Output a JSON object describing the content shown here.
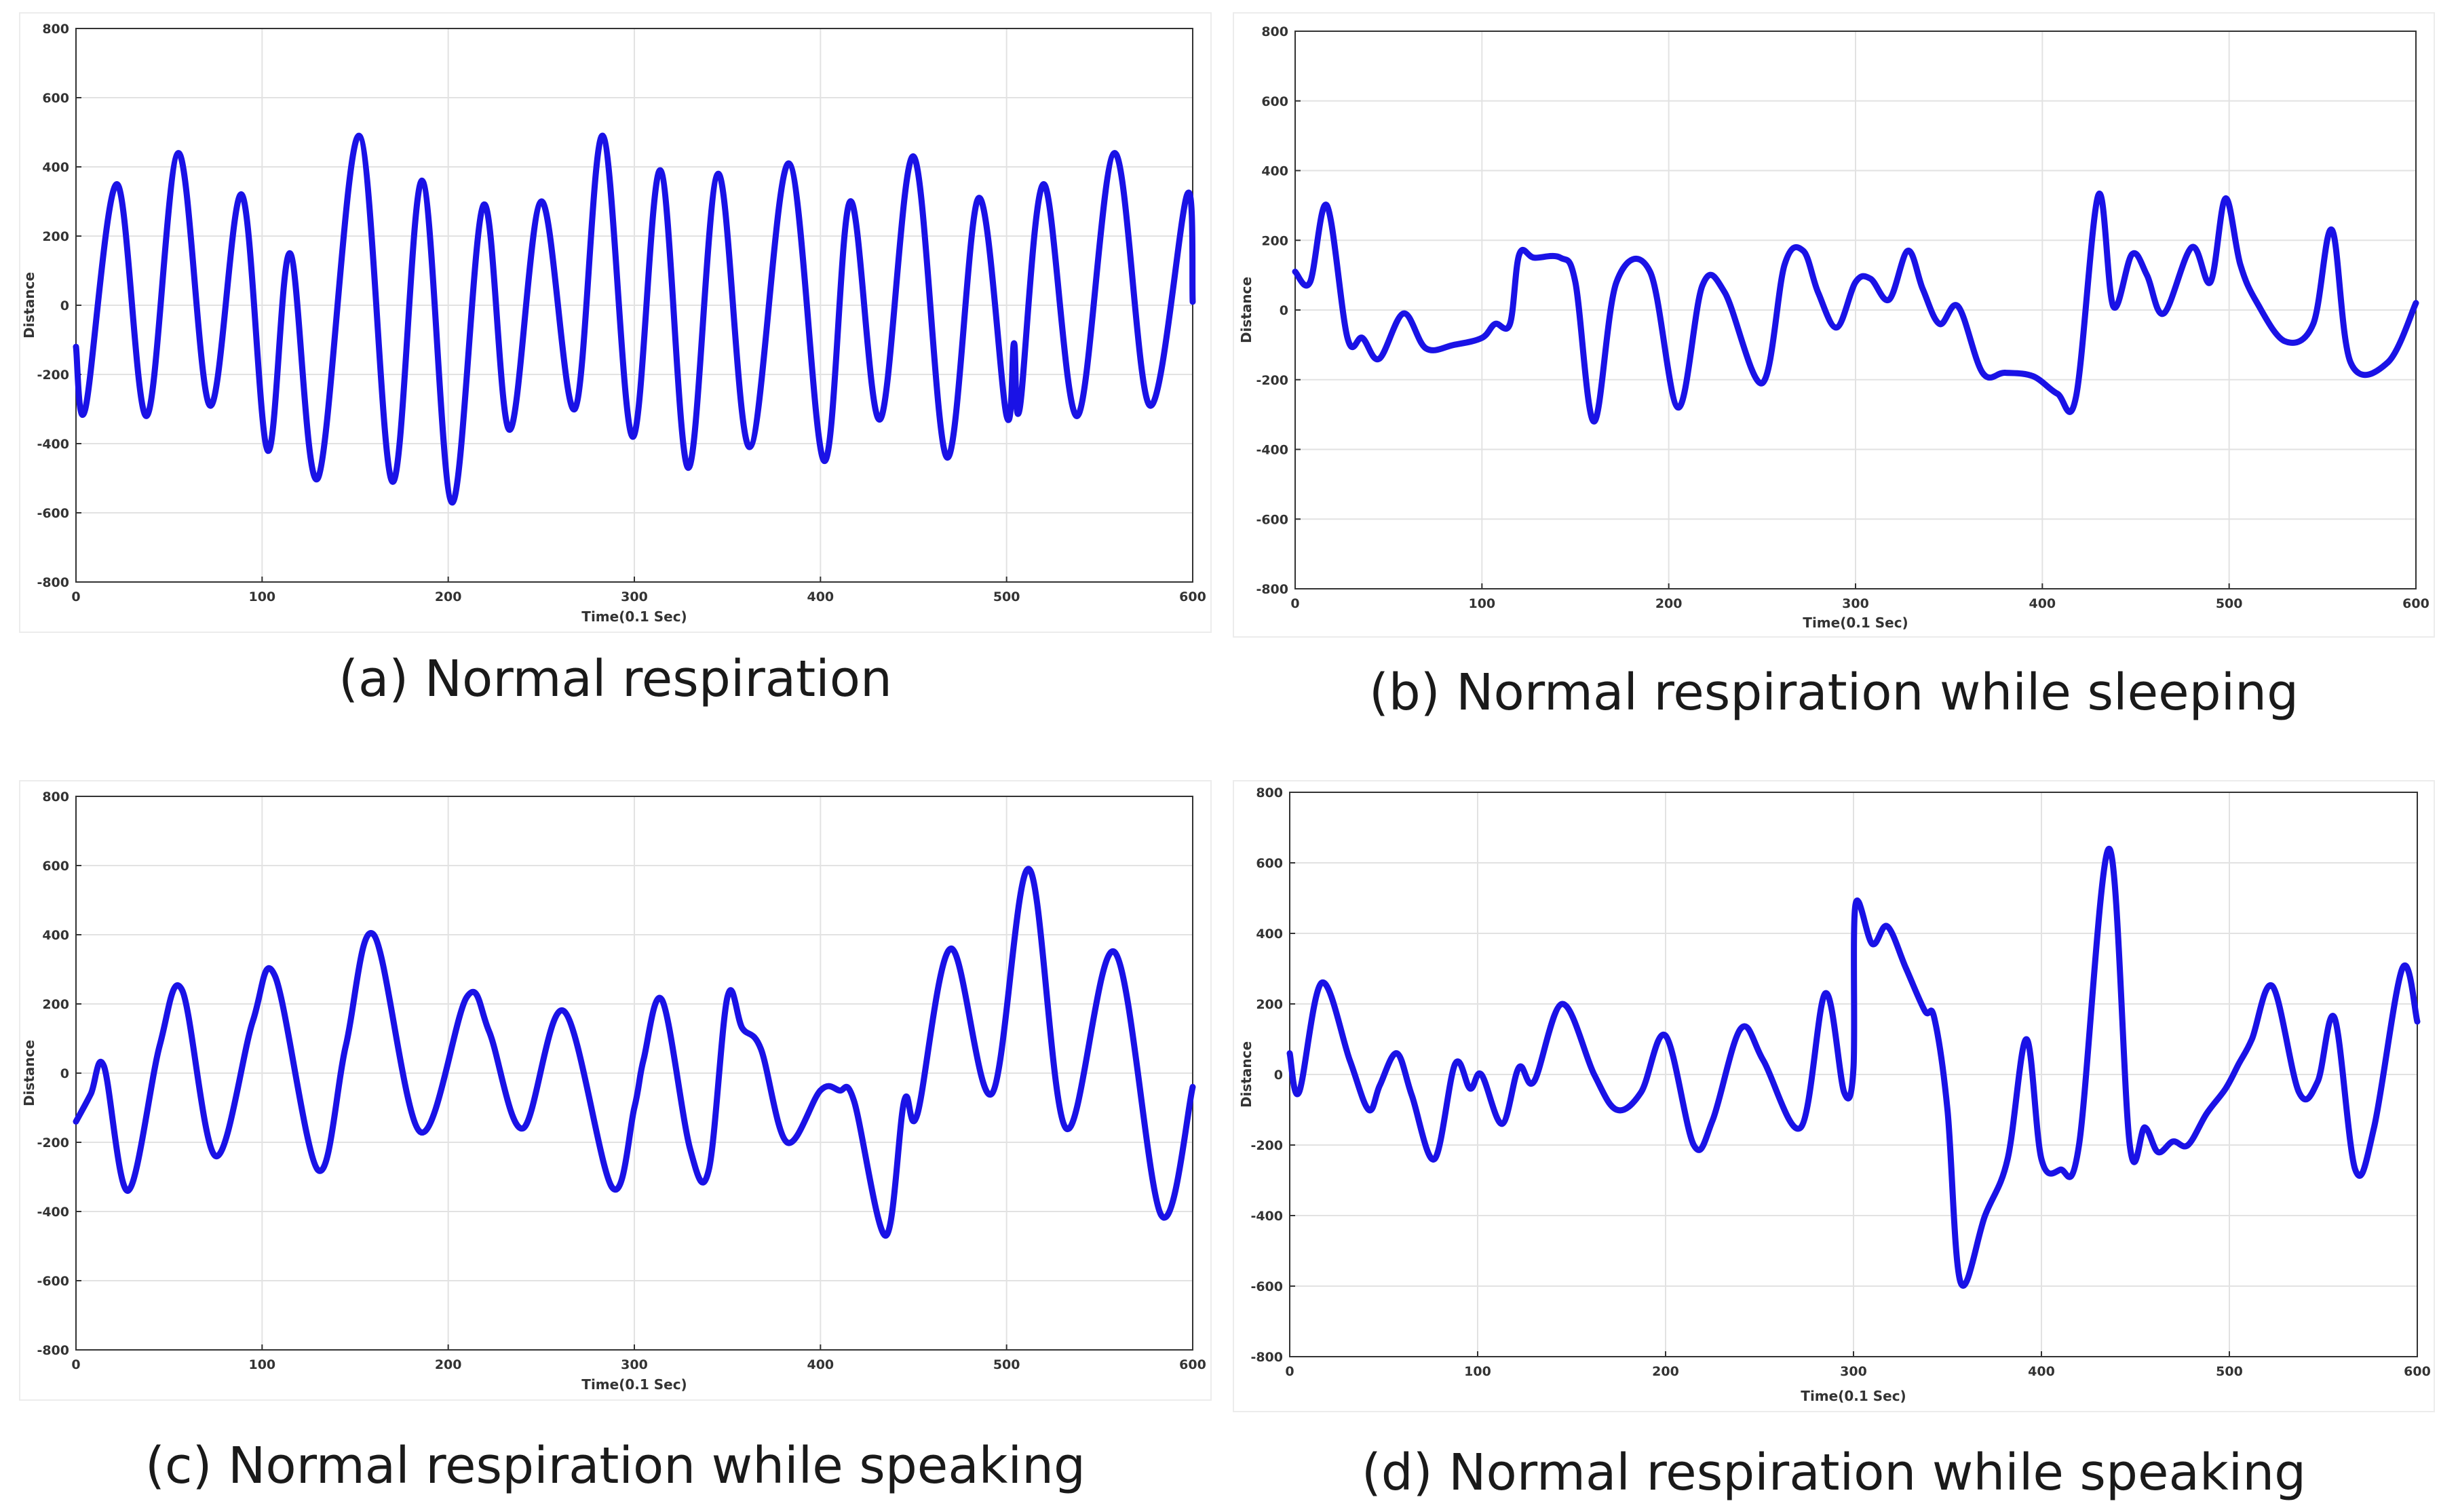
{
  "colors": {
    "line": "#1a12e6",
    "grid": "#e2e2e2",
    "axis": "#333333"
  },
  "chart_data": [
    {
      "type": "line",
      "caption": "(a) Normal respiration",
      "xlabel": "Time(0.1 Sec)",
      "ylabel": "Distance",
      "xlim": [
        0,
        600
      ],
      "ylim": [
        -800,
        800
      ],
      "xticks": [
        0,
        100,
        200,
        300,
        400,
        500,
        600
      ],
      "yticks": [
        -800,
        -600,
        -400,
        -200,
        0,
        200,
        400,
        600,
        800
      ],
      "grid": true,
      "series": [
        {
          "x": [
            0,
            5,
            22,
            38,
            55,
            72,
            89,
            103,
            115,
            130,
            152,
            170,
            186,
            202,
            219,
            233,
            250,
            268,
            283,
            299,
            314,
            329,
            345,
            362,
            383,
            402,
            416,
            432,
            450,
            468,
            485,
            500,
            504,
            507,
            520,
            538,
            558,
            577,
            597,
            600
          ],
          "y": [
            -120,
            -300,
            350,
            -320,
            440,
            -290,
            320,
            -420,
            150,
            -500,
            490,
            -510,
            360,
            -570,
            290,
            -360,
            300,
            -300,
            490,
            -380,
            390,
            -470,
            380,
            -410,
            410,
            -450,
            300,
            -330,
            430,
            -440,
            310,
            -320,
            -110,
            -300,
            350,
            -320,
            440,
            -290,
            320,
            10
          ]
        }
      ]
    },
    {
      "type": "line",
      "caption": "(b) Normal respiration while sleeping",
      "xlabel": "Time(0.1 Sec)",
      "ylabel": "Distance",
      "xlim": [
        0,
        600
      ],
      "ylim": [
        -800,
        800
      ],
      "xticks": [
        0,
        100,
        200,
        300,
        400,
        500,
        600
      ],
      "yticks": [
        -800,
        -600,
        -400,
        -200,
        0,
        200,
        400,
        600,
        800
      ],
      "grid": true,
      "series": [
        {
          "x": [
            0,
            8,
            17,
            28,
            36,
            45,
            58,
            70,
            85,
            100,
            107,
            115,
            120,
            128,
            142,
            150,
            160,
            172,
            190,
            205,
            218,
            230,
            250,
            262,
            272,
            280,
            290,
            300,
            308,
            318,
            328,
            336,
            345,
            355,
            368,
            380,
            395,
            408,
            418,
            430,
            438,
            448,
            456,
            465,
            480,
            490,
            498,
            506,
            515,
            530,
            545,
            555,
            565,
            585,
            600
          ],
          "y": [
            110,
            80,
            300,
            -80,
            -80,
            -140,
            -10,
            -110,
            -100,
            -80,
            -40,
            -40,
            160,
            150,
            150,
            80,
            -320,
            80,
            110,
            -280,
            70,
            50,
            -210,
            130,
            170,
            50,
            -50,
            80,
            90,
            30,
            170,
            60,
            -40,
            10,
            -180,
            -180,
            -190,
            -240,
            -250,
            330,
            10,
            160,
            100,
            -10,
            180,
            80,
            320,
            130,
            20,
            -90,
            -40,
            230,
            -150,
            -150,
            20
          ]
        }
      ]
    },
    {
      "type": "line",
      "caption": "(c) Normal respiration while speaking",
      "xlabel": "Time(0.1 Sec)",
      "ylabel": "Distance",
      "xlim": [
        0,
        600
      ],
      "ylim": [
        -800,
        800
      ],
      "xticks": [
        0,
        100,
        200,
        300,
        400,
        500,
        600
      ],
      "yticks": [
        -800,
        -600,
        -400,
        -200,
        0,
        200,
        400,
        600,
        800
      ],
      "grid": true,
      "series": [
        {
          "x": [
            0,
            8,
            15,
            28,
            45,
            57,
            75,
            95,
            107,
            130,
            145,
            160,
            185,
            210,
            222,
            240,
            262,
            288,
            300,
            305,
            315,
            330,
            340,
            350,
            358,
            368,
            382,
            400,
            410,
            418,
            435,
            445,
            452,
            470,
            492,
            512,
            532,
            558,
            583,
            600
          ],
          "y": [
            -140,
            -60,
            20,
            -340,
            80,
            240,
            -240,
            150,
            280,
            -280,
            80,
            400,
            -170,
            220,
            120,
            -160,
            180,
            -330,
            -100,
            40,
            210,
            -220,
            -280,
            220,
            130,
            70,
            -200,
            -50,
            -50,
            -80,
            -470,
            -80,
            -120,
            360,
            -60,
            590,
            -160,
            350,
            -410,
            -40
          ]
        }
      ]
    },
    {
      "type": "line",
      "caption": "(d) Normal respiration while speaking",
      "xlabel": "Time(0.1 Sec)",
      "ylabel": "Distance",
      "xlim": [
        0,
        600
      ],
      "ylim": [
        -800,
        800
      ],
      "xticks": [
        0,
        100,
        200,
        300,
        400,
        500,
        600
      ],
      "yticks": [
        -800,
        -600,
        -400,
        -200,
        0,
        200,
        400,
        600,
        800
      ],
      "grid": true,
      "series": [
        {
          "x": [
            0,
            5,
            17,
            32,
            42,
            48,
            57,
            65,
            77,
            88,
            96,
            102,
            113,
            122,
            130,
            145,
            162,
            174,
            187,
            200,
            215,
            225,
            240,
            252,
            272,
            285,
            295,
            300,
            301,
            310,
            318,
            328,
            338,
            343,
            350,
            357,
            370,
            382,
            392,
            400,
            410,
            420,
            436,
            447,
            455,
            462,
            470,
            478,
            488,
            498,
            505,
            512,
            523,
            537,
            547,
            556,
            567,
            577,
            592,
            600
          ],
          "y": [
            60,
            -50,
            260,
            40,
            -100,
            -30,
            60,
            -60,
            -240,
            30,
            -40,
            0,
            -140,
            20,
            -20,
            200,
            0,
            -100,
            -50,
            110,
            -200,
            -130,
            130,
            40,
            -150,
            230,
            -50,
            20,
            480,
            370,
            420,
            300,
            180,
            160,
            -100,
            -590,
            -400,
            -240,
            100,
            -240,
            -270,
            -200,
            640,
            -200,
            -150,
            -220,
            -190,
            -200,
            -110,
            -40,
            30,
            100,
            250,
            -50,
            -20,
            160,
            -270,
            -150,
            300,
            150
          ]
        }
      ]
    }
  ]
}
